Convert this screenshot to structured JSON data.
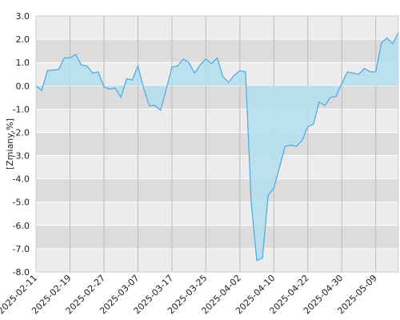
{
  "chart_data": {
    "type": "area",
    "y_label": "[Zmiany,%]",
    "categories": [
      "2025-02-11",
      null,
      null,
      null,
      null,
      null,
      "2025-02-19",
      null,
      null,
      null,
      null,
      null,
      "2025-02-27",
      null,
      null,
      null,
      null,
      null,
      "2025-03-07",
      null,
      null,
      null,
      null,
      null,
      "2025-03-17",
      null,
      null,
      null,
      null,
      null,
      "2025-03-25",
      null,
      null,
      null,
      null,
      null,
      "2025-04-02",
      null,
      null,
      null,
      null,
      null,
      "2025-04-10",
      null,
      null,
      null,
      null,
      null,
      "2025-04-22",
      null,
      null,
      null,
      null,
      null,
      "2025-04-30",
      null,
      null,
      null,
      null,
      null,
      "2025-05-09",
      null,
      null,
      null,
      null
    ],
    "values": [
      0.0,
      -0.2,
      0.65,
      0.68,
      0.7,
      1.2,
      1.2,
      1.35,
      0.9,
      0.85,
      0.55,
      0.6,
      -0.05,
      -0.15,
      -0.1,
      -0.5,
      0.3,
      0.25,
      0.85,
      -0.1,
      -0.85,
      -0.85,
      -1.05,
      -0.15,
      0.8,
      0.85,
      1.15,
      1.0,
      0.55,
      0.9,
      1.15,
      0.95,
      1.2,
      0.4,
      0.15,
      0.45,
      0.65,
      0.6,
      -5.0,
      -7.5,
      -7.4,
      -4.7,
      -4.4,
      -3.5,
      -2.6,
      -2.55,
      -2.6,
      -2.35,
      -1.75,
      -1.65,
      -0.7,
      -0.85,
      -0.5,
      -0.45,
      0.1,
      0.6,
      0.55,
      0.5,
      0.75,
      0.6,
      0.6,
      1.85,
      2.05,
      1.8,
      2.3
    ],
    "color": "#4da6e6",
    "fill": "#b3dff0",
    "ylim": [
      -8,
      3
    ],
    "yticks": [
      {
        "value": 3,
        "label": "3.0"
      },
      {
        "value": 2,
        "label": "2.0"
      },
      {
        "value": 1,
        "label": "1.0"
      },
      {
        "value": 0,
        "label": "0.0"
      },
      {
        "value": -1,
        "label": "-1.0"
      },
      {
        "value": -2,
        "label": "-2.0"
      },
      {
        "value": -3,
        "label": "-3.0"
      },
      {
        "value": -4,
        "label": "-4.0"
      },
      {
        "value": -5,
        "label": "-5.0"
      },
      {
        "value": -6,
        "label": "-6.0"
      },
      {
        "value": -7,
        "label": "-7.0"
      },
      {
        "value": -8,
        "label": "-8.0"
      }
    ],
    "grid": true
  }
}
